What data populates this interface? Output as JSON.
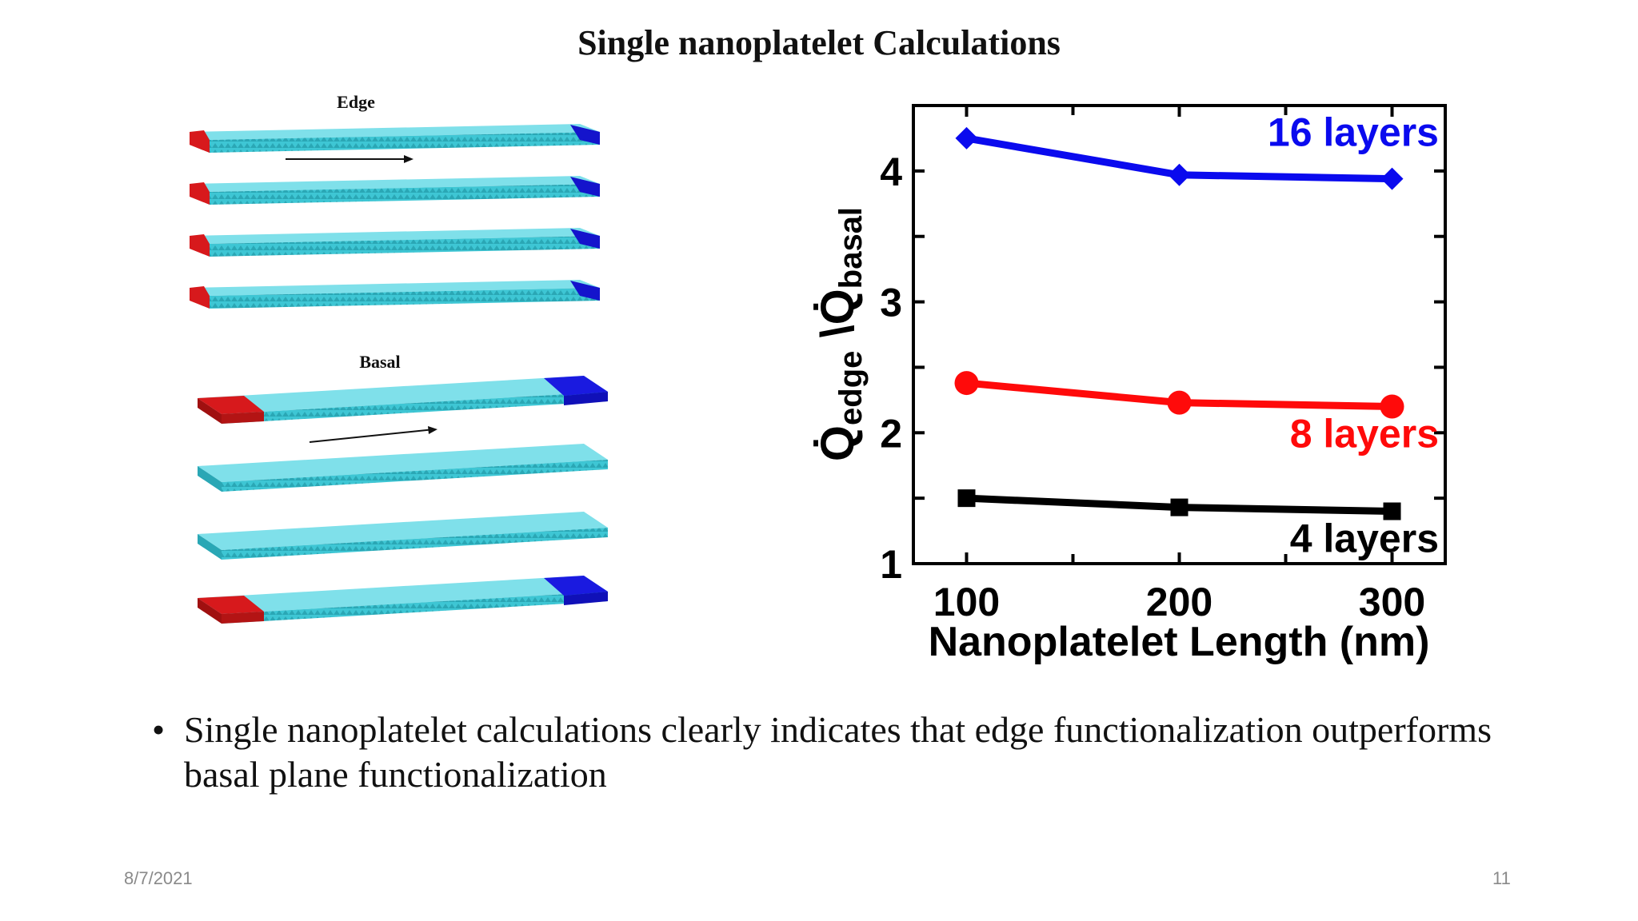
{
  "slide": {
    "title": "Single nanoplatelet Calculations",
    "bullet": "Single nanoplatelet calculations clearly indicates that edge functionalization outperforms basal plane functionalization",
    "date": "8/7/2021",
    "page_number": "11"
  },
  "figure_left": {
    "edge_label": "Edge",
    "basal_label": "Basal",
    "colors": {
      "platelet": "#3ec6d4",
      "edge_red": "#d7191c",
      "edge_blue": "#1a1ae0"
    }
  },
  "chart_data": {
    "type": "line",
    "x": [
      100,
      200,
      300
    ],
    "xlim": [
      75,
      325
    ],
    "ylim": [
      1,
      4.5
    ],
    "x_ticks": [
      "100",
      "200",
      "300"
    ],
    "y_ticks": [
      "1",
      "2",
      "3",
      "4"
    ],
    "xlabel": "Nanoplatelet Length (nm)",
    "ylabel": "Q̇edge \\Q̇basal",
    "series": [
      {
        "name": "16 layers",
        "values": [
          4.25,
          3.97,
          3.94
        ],
        "color": "#0a0aee",
        "marker": "diamond"
      },
      {
        "name": "8 layers",
        "values": [
          2.38,
          2.23,
          2.2
        ],
        "color": "#ff0a0a",
        "marker": "circle"
      },
      {
        "name": "4 layers",
        "values": [
          1.5,
          1.43,
          1.4
        ],
        "color": "#000000",
        "marker": "square"
      }
    ]
  }
}
